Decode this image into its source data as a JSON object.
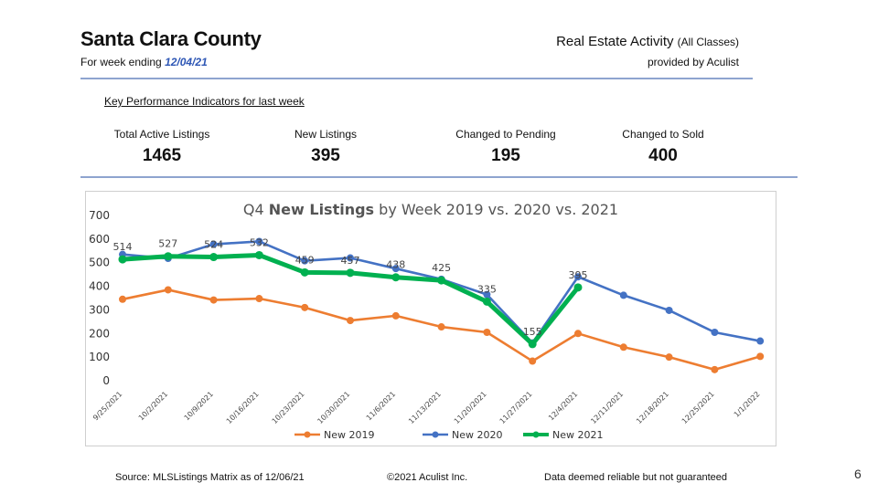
{
  "header": {
    "title": "Santa Clara County",
    "subtitle_prefix": "For week ending ",
    "subtitle_date": "12/04/21",
    "right_title": "Real Estate Activity",
    "right_title_small": "(All Classes)",
    "right_sub": "provided by Aculist"
  },
  "kpi": {
    "heading": "Key Performance Indicators for last week",
    "items": [
      {
        "label": "Total Active Listings",
        "value": "1465"
      },
      {
        "label": "New Listings",
        "value": "395"
      },
      {
        "label": "Changed to Pending",
        "value": "195"
      },
      {
        "label": "Changed to Sold",
        "value": "400"
      }
    ]
  },
  "chart_data": {
    "type": "line",
    "title_prefix": "Q4 ",
    "title_bold": "New Listings",
    "title_suffix": " by Week 2019 vs. 2020 vs. 2021",
    "categories": [
      "9/25/2021",
      "10/2/2021",
      "10/9/2021",
      "10/16/2021",
      "10/23/2021",
      "10/30/2021",
      "11/6/2021",
      "11/13/2021",
      "11/20/2021",
      "11/27/2021",
      "12/4/2021",
      "12/11/2021",
      "12/18/2021",
      "12/25/2021",
      "1/1/2022"
    ],
    "ylim": [
      0,
      700
    ],
    "yticks": [
      0,
      100,
      200,
      300,
      400,
      500,
      600,
      700
    ],
    "grid": false,
    "legend_position": "bottom",
    "series": [
      {
        "name": "New 2019",
        "color": "#ed7d31",
        "values": [
          345,
          385,
          342,
          348,
          310,
          255,
          275,
          228,
          205,
          83,
          200,
          142,
          100,
          47,
          103
        ]
      },
      {
        "name": "New 2020",
        "color": "#4472c4",
        "values": [
          535,
          518,
          578,
          590,
          508,
          520,
          475,
          430,
          365,
          160,
          440,
          362,
          298,
          205,
          168
        ]
      },
      {
        "name": "New 2021",
        "color": "#00b050",
        "values": [
          514,
          527,
          524,
          532,
          459,
          457,
          438,
          425,
          335,
          155,
          395,
          null,
          null,
          null,
          null
        ]
      }
    ],
    "data_labels": {
      "series_index": 2,
      "values": [
        "514",
        "527",
        "524",
        "532",
        "459",
        "457",
        "438",
        "425",
        "335",
        "155",
        "395"
      ]
    }
  },
  "footer": {
    "source": "Source: MLSListings Matrix as of 12/06/21",
    "copyright": "©2021 Aculist Inc.",
    "disclaimer": "Data deemed reliable but not guaranteed",
    "page_number": "6"
  }
}
